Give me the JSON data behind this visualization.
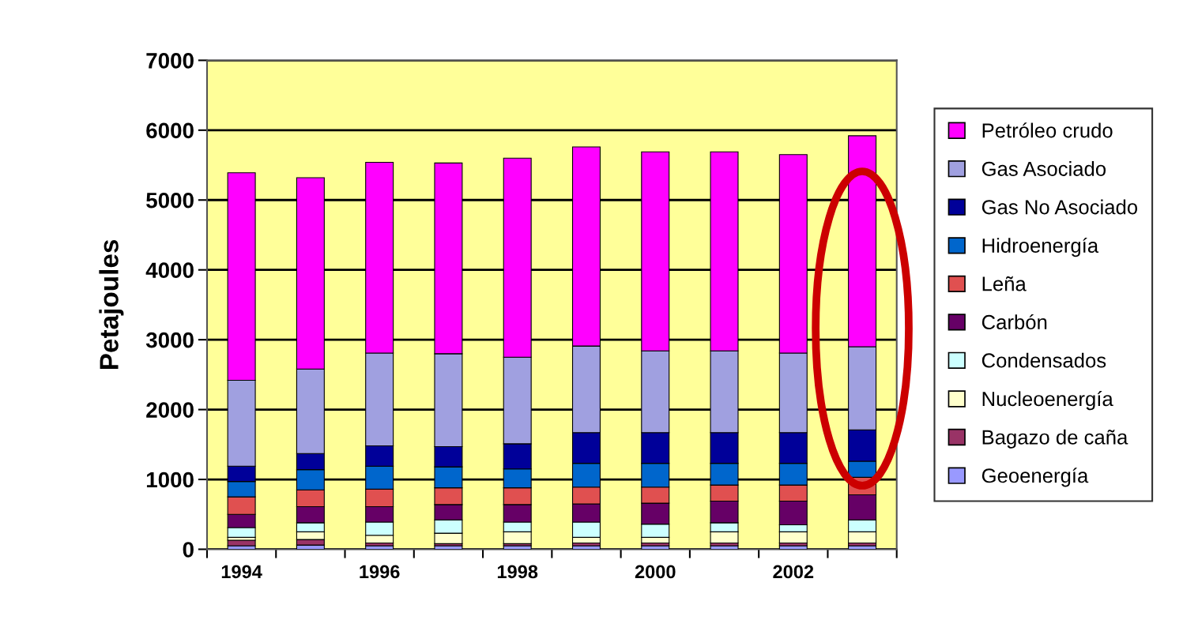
{
  "chart_data": {
    "type": "bar",
    "stacked": true,
    "ylabel": "Petajoules",
    "categories": [
      "1994",
      null,
      "1996",
      null,
      "1998",
      null,
      "2000",
      null,
      "2002",
      null
    ],
    "series": [
      {
        "name": "Geoenergía",
        "color": "#9999ff",
        "values": [
          50,
          60,
          50,
          50,
          50,
          50,
          50,
          50,
          50,
          50
        ]
      },
      {
        "name": "Bagazo de caña",
        "color": "#993366",
        "values": [
          80,
          80,
          40,
          30,
          30,
          40,
          40,
          40,
          40,
          40
        ]
      },
      {
        "name": "Nucleoenergía",
        "color": "#ffffcc",
        "values": [
          40,
          110,
          110,
          150,
          170,
          80,
          80,
          160,
          160,
          160
        ]
      },
      {
        "name": "Condensados",
        "color": "#ccffff",
        "values": [
          140,
          130,
          190,
          190,
          140,
          220,
          190,
          130,
          100,
          170
        ]
      },
      {
        "name": "Carbón",
        "color": "#660066",
        "values": [
          190,
          230,
          220,
          220,
          250,
          260,
          300,
          310,
          340,
          360
        ]
      },
      {
        "name": "Leña",
        "color": "#e05050",
        "values": [
          250,
          240,
          250,
          240,
          240,
          240,
          230,
          230,
          230,
          250
        ]
      },
      {
        "name": "Hidroenergía",
        "color": "#0066cc",
        "values": [
          220,
          290,
          330,
          300,
          270,
          340,
          340,
          310,
          310,
          230
        ]
      },
      {
        "name": "Gas No Asociado",
        "color": "#000099",
        "values": [
          220,
          230,
          290,
          290,
          360,
          440,
          440,
          440,
          440,
          450
        ]
      },
      {
        "name": "Gas Asociado",
        "color": "#a0a0e0",
        "values": [
          1230,
          1210,
          1330,
          1330,
          1240,
          1240,
          1170,
          1170,
          1140,
          1190
        ]
      },
      {
        "name": "Petróleo crudo",
        "color": "#ff00ff",
        "values": [
          2970,
          2740,
          2730,
          2730,
          2850,
          2850,
          2850,
          2850,
          2840,
          3020
        ]
      }
    ],
    "ylim": [
      0,
      7000
    ],
    "yticks": [
      0,
      1000,
      2000,
      3000,
      4000,
      5000,
      6000,
      7000
    ],
    "grid": "y",
    "legend": "right"
  }
}
